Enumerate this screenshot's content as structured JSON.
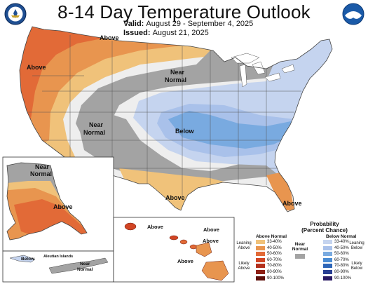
{
  "title": "8-14 Day Temperature Outlook",
  "valid": {
    "label": "Valid:",
    "value": "August 29 - September 4, 2025"
  },
  "issued": {
    "label": "Issued:",
    "value": "August 21, 2025"
  },
  "logos": {
    "left": "department-of-commerce-seal-icon",
    "right": "noaa-logo-icon"
  },
  "map_labels": {
    "above_north": "Above",
    "above_west": "Above",
    "near_north_1": "Near",
    "near_north_2": "Normal",
    "near_sw_1": "Near",
    "near_sw_2": "Normal",
    "below": "Below",
    "above_texas": "Above",
    "above_florida": "Above",
    "alaska_near_1": "Near",
    "alaska_near_2": "Normal",
    "alaska_above": "Above",
    "aleutian_title": "Aleutian Islands",
    "aleutian_below": "Below",
    "aleutian_near_1": "Near",
    "aleutian_near_2": "Normal",
    "hawaii_above_1": "Above",
    "hawaii_above_2": "Above",
    "hawaii_above_3": "Above",
    "hawaii_above_4": "Above"
  },
  "legend": {
    "title_1": "Probability",
    "title_2": "(Percent Chance)",
    "above_head": "Above Normal",
    "below_head": "Below Normal",
    "near_1": "Near",
    "near_2": "Normal",
    "leaning_above_1": "Leaning",
    "leaning_above_2": "Above",
    "likely_above_1": "Likely",
    "likely_above_2": "Above",
    "leaning_below_1": "Leaning",
    "leaning_below_2": "Below",
    "likely_below_1": "Likely",
    "likely_below_2": "Below",
    "ranges": [
      "33-40%",
      "40-50%",
      "50-60%",
      "60-70%",
      "70-80%",
      "80-90%",
      "90-100%"
    ],
    "above_colors": [
      "#f0c27a",
      "#e8954f",
      "#e26a37",
      "#d14524",
      "#b3301c",
      "#8e2014",
      "#5e0f0a"
    ],
    "below_colors": [
      "#c5d4ef",
      "#a9c1ea",
      "#79aae0",
      "#4a8cd3",
      "#2e66b8",
      "#293f93",
      "#2a1a63"
    ],
    "near_color": "#a3a3a3"
  }
}
